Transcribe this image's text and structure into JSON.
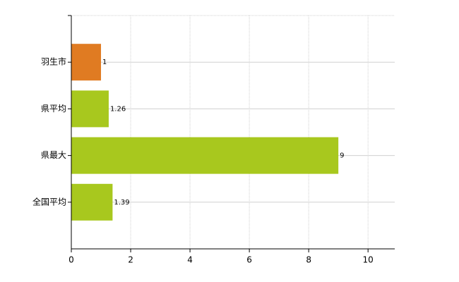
{
  "chart_data": {
    "type": "bar",
    "orientation": "horizontal",
    "categories": [
      "羽生市",
      "県平均",
      "県最大",
      "全国平均"
    ],
    "values": [
      1,
      1.26,
      9,
      1.39
    ],
    "colors": [
      "#e07b22",
      "#a8c81e",
      "#a8c81e",
      "#a8c81e"
    ],
    "xlim": [
      0,
      10.9
    ],
    "xticks": [
      0,
      2,
      4,
      6,
      8,
      10
    ],
    "grid": true
  }
}
